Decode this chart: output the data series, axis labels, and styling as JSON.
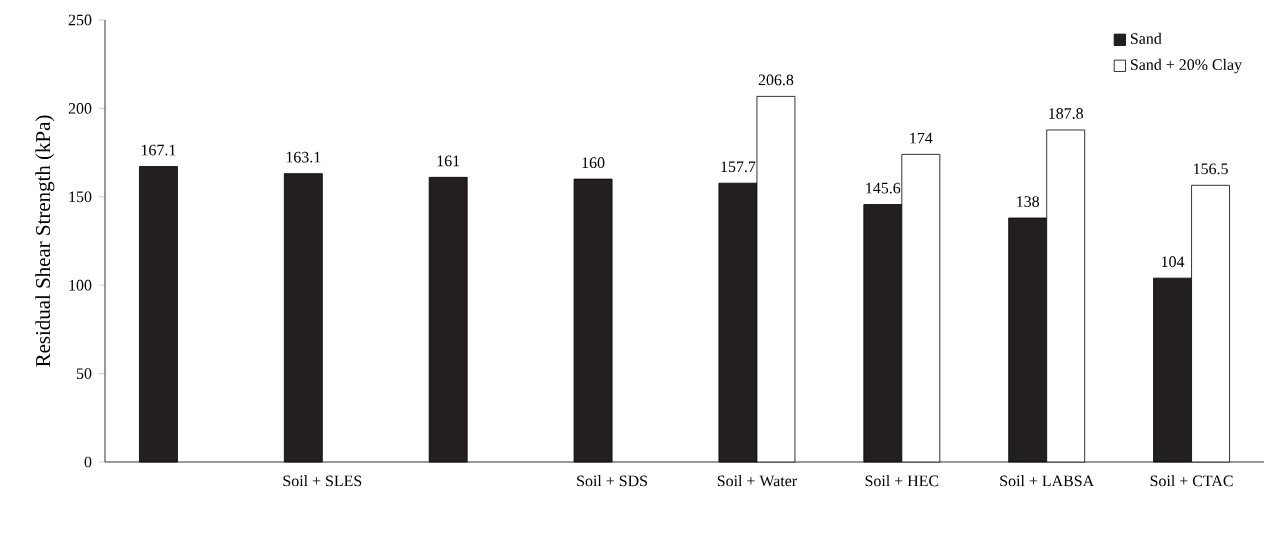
{
  "chart_data": {
    "type": "bar",
    "ylabel": "Residual Shear Strength (kPa)",
    "categories": [
      null,
      "Soil + SLES",
      null,
      "Soil + SDS",
      "Soil + Water",
      "Soil + HEC",
      "Soil + LABSA",
      "Soil + CTAC"
    ],
    "series": [
      {
        "name": "Sand",
        "color": "#231f20",
        "values": [
          167.1,
          163.1,
          161,
          160,
          157.7,
          145.6,
          138,
          104
        ]
      },
      {
        "name": "Sand + 20% Clay",
        "color": "#ffffff",
        "values": [
          null,
          null,
          null,
          null,
          206.8,
          174,
          187.8,
          156.5
        ]
      }
    ],
    "ylim": [
      0,
      250
    ],
    "yticks": [
      0,
      50,
      100,
      150,
      200,
      250
    ],
    "data_labels": true,
    "legend": "top right",
    "grid": false
  }
}
